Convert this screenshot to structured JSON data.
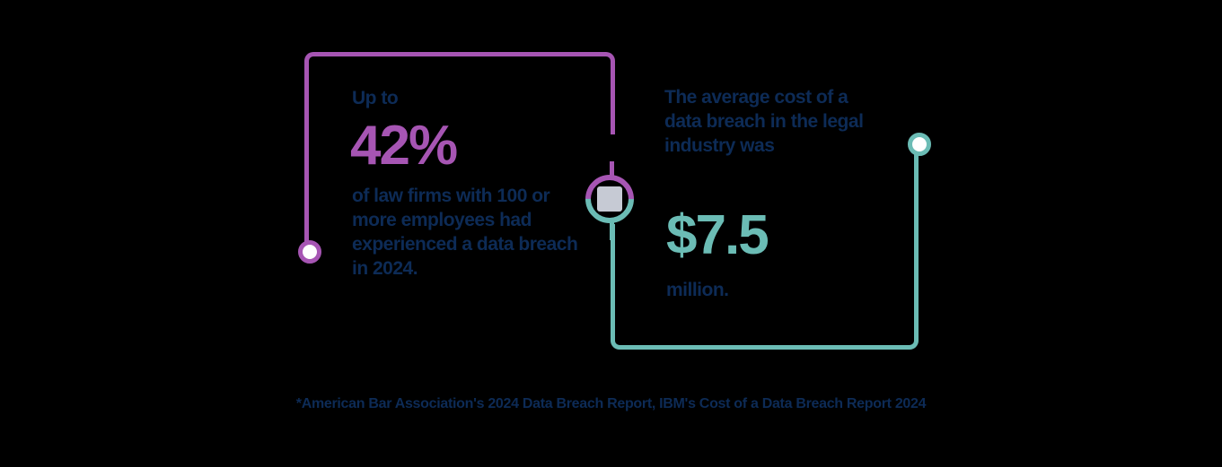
{
  "colors": {
    "purple": "#a655b3",
    "teal": "#6bbcb5",
    "navy": "#0d2b56",
    "background": "#000000"
  },
  "stat_left": {
    "pre_text": "Up to",
    "value": "42%",
    "description": "of law firms with 100 or more employees had experienced a data breach in 2024."
  },
  "stat_right": {
    "pre_text": "The average cost of a data breach in the legal industry was",
    "value": "$7.5",
    "post_text": "million."
  },
  "footnote": "*American Bar Association's 2024 Data Breach Report, IBM's Cost of a Data Breach Report 2024"
}
